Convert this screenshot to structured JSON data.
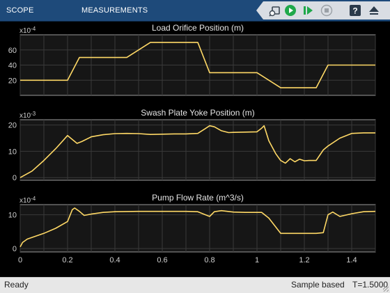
{
  "toolbar": {
    "tabs": [
      {
        "label": "SCOPE"
      },
      {
        "label": "MEASUREMENTS"
      }
    ],
    "buttons": [
      "highlight-block-icon",
      "run-icon",
      "step-forward-icon",
      "stop-icon",
      "help-icon",
      "expand-icon"
    ],
    "colors": {
      "background": "#1e4a7a",
      "run": "#1fa84a",
      "stop": "#9aa0a6"
    }
  },
  "status": {
    "left": "Ready",
    "mode": "Sample based",
    "time": "T=1.5000"
  },
  "chart_data": [
    {
      "type": "line",
      "title": "Load Orifice Position (m)",
      "exponent": "x10^-4",
      "exponent_base": "x10",
      "exponent_power": "-4",
      "xlim": [
        0,
        1.5
      ],
      "ylim": [
        0,
        80
      ],
      "yticks": [
        20,
        40,
        60
      ],
      "x": [
        0,
        0.2,
        0.25,
        0.45,
        0.55,
        0.75,
        0.8,
        1.0,
        1.1,
        1.25,
        1.3,
        1.5
      ],
      "y": [
        20,
        20,
        50,
        50,
        70,
        70,
        30,
        30,
        10,
        10,
        40,
        40
      ],
      "color": "#ffd966"
    },
    {
      "type": "line",
      "title": "Swash Plate Yoke Position (m)",
      "exponent": "x10^-3",
      "exponent_base": "x10",
      "exponent_power": "-3",
      "xlim": [
        0,
        1.5
      ],
      "ylim": [
        -1,
        22
      ],
      "yticks": [
        0,
        10,
        20
      ],
      "x": [
        0,
        0.05,
        0.1,
        0.15,
        0.18,
        0.2,
        0.22,
        0.24,
        0.26,
        0.3,
        0.35,
        0.4,
        0.45,
        0.5,
        0.55,
        0.6,
        0.65,
        0.7,
        0.75,
        0.78,
        0.8,
        0.82,
        0.85,
        0.88,
        0.9,
        0.95,
        1.0,
        1.02,
        1.03,
        1.05,
        1.08,
        1.1,
        1.12,
        1.14,
        1.16,
        1.18,
        1.2,
        1.22,
        1.24,
        1.25,
        1.28,
        1.3,
        1.35,
        1.4,
        1.45,
        1.5
      ],
      "y": [
        0,
        2.5,
        6.5,
        11,
        14,
        16,
        14.5,
        13,
        13.7,
        15.5,
        16.3,
        16.7,
        16.8,
        16.7,
        16.4,
        16.5,
        16.6,
        16.6,
        16.8,
        18.5,
        19.7,
        19.3,
        17.8,
        17.1,
        17.2,
        17.3,
        17.4,
        18.8,
        19.7,
        14,
        9,
        6.5,
        5.5,
        7.2,
        6,
        7,
        6.4,
        6.5,
        6.5,
        6.5,
        10.5,
        12,
        15,
        16.8,
        17,
        17
      ],
      "color": "#ffd966"
    },
    {
      "type": "line",
      "title": "Pump Flow Rate (m^3/s)",
      "exponent": "x10^-4",
      "exponent_base": "x10",
      "exponent_power": "-4",
      "xlim": [
        0,
        1.5
      ],
      "ylim": [
        -1,
        13
      ],
      "yticks": [
        0,
        10
      ],
      "x": [
        0,
        0.01,
        0.03,
        0.1,
        0.15,
        0.2,
        0.22,
        0.23,
        0.25,
        0.27,
        0.3,
        0.35,
        0.4,
        0.5,
        0.6,
        0.7,
        0.75,
        0.8,
        0.82,
        0.85,
        0.9,
        0.95,
        1.0,
        1.02,
        1.05,
        1.1,
        1.15,
        1.2,
        1.25,
        1.28,
        1.3,
        1.32,
        1.35,
        1.4,
        1.45,
        1.5
      ],
      "y": [
        0.5,
        1.8,
        2.8,
        4.5,
        6,
        8,
        11.5,
        12,
        11,
        9.8,
        10.2,
        10.7,
        10.9,
        11,
        11,
        11,
        10.9,
        9.5,
        10.9,
        11.2,
        10.8,
        10.7,
        10.7,
        10.7,
        9,
        4.5,
        4.5,
        4.5,
        4.5,
        4.7,
        10,
        10.8,
        9.5,
        10.3,
        10.9,
        11
      ],
      "color": "#ffd966"
    }
  ],
  "x_ticks": [
    "0",
    "0.2",
    "0.4",
    "0.6",
    "0.8",
    "1",
    "1.2",
    "1.4"
  ]
}
